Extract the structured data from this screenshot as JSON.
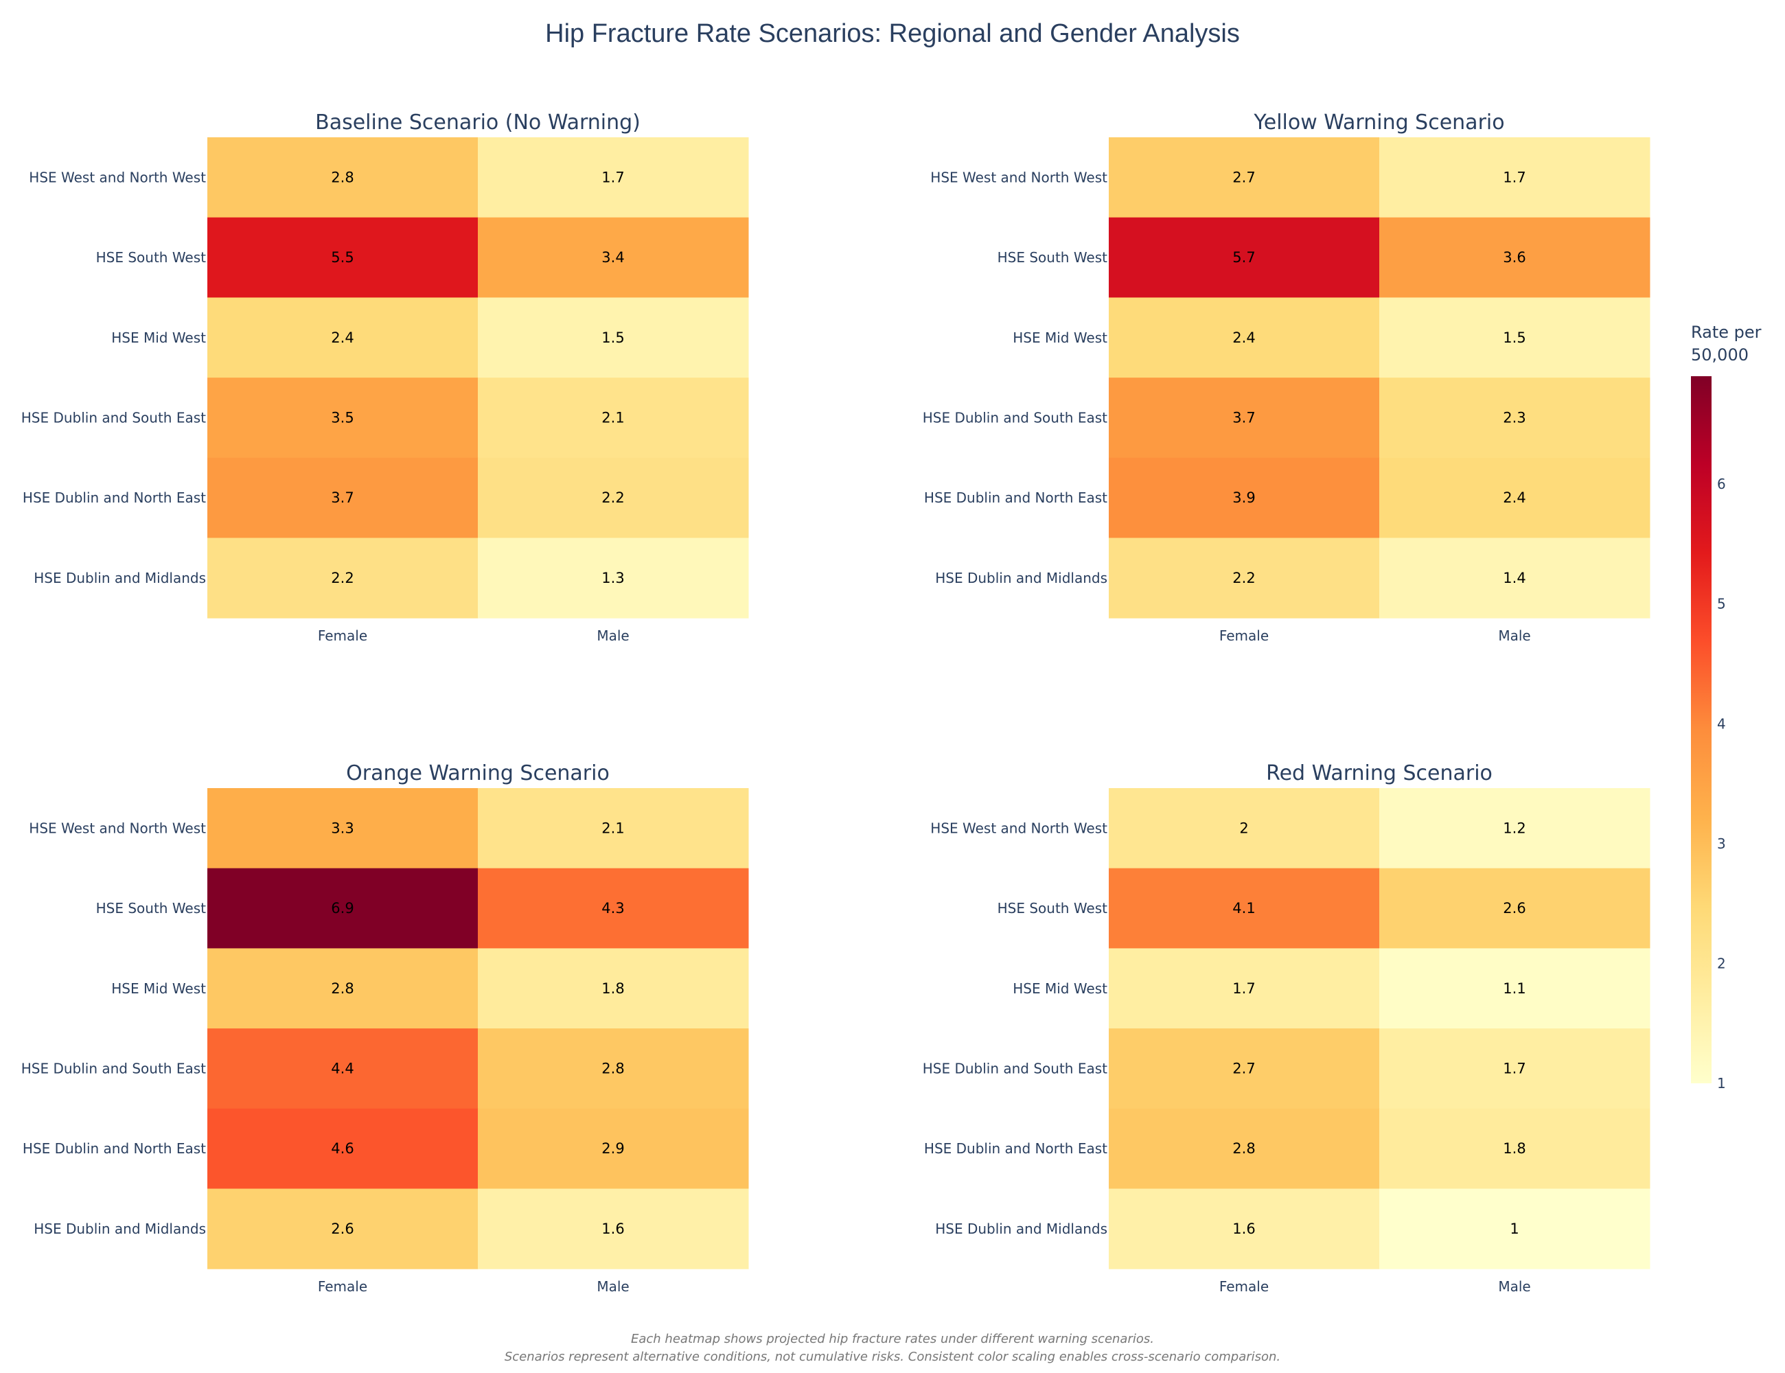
{
  "chart_data": {
    "type": "heatmap",
    "title": "Hip Fracture Rate Scenarios: Regional and Gender Analysis",
    "regions": [
      "HSE West and North West",
      "HSE South West",
      "HSE Mid West",
      "HSE Dublin and South East",
      "HSE Dublin and North East",
      "HSE Dublin and Midlands"
    ],
    "genders": [
      "Female",
      "Male"
    ],
    "panels": [
      {
        "title": "Baseline Scenario (No Warning)",
        "values": [
          [
            2.8,
            1.7
          ],
          [
            5.5,
            3.4
          ],
          [
            2.4,
            1.5
          ],
          [
            3.5,
            2.1
          ],
          [
            3.7,
            2.2
          ],
          [
            2.2,
            1.3
          ]
        ]
      },
      {
        "title": "Yellow Warning Scenario",
        "values": [
          [
            2.7,
            1.7
          ],
          [
            5.7,
            3.6
          ],
          [
            2.4,
            1.5
          ],
          [
            3.7,
            2.3
          ],
          [
            3.9,
            2.4
          ],
          [
            2.2,
            1.4
          ]
        ]
      },
      {
        "title": "Orange Warning Scenario",
        "values": [
          [
            3.3,
            2.1
          ],
          [
            6.9,
            4.3
          ],
          [
            2.8,
            1.8
          ],
          [
            4.4,
            2.8
          ],
          [
            4.6,
            2.9
          ],
          [
            2.6,
            1.6
          ]
        ]
      },
      {
        "title": "Red Warning Scenario",
        "values": [
          [
            2,
            1.2
          ],
          [
            4.1,
            2.6
          ],
          [
            1.7,
            1.1
          ],
          [
            2.7,
            1.7
          ],
          [
            2.8,
            1.8
          ],
          [
            1.6,
            1
          ]
        ]
      }
    ],
    "colorbar": {
      "title": "Rate per 50,000",
      "range": [
        1,
        6.9
      ],
      "ticks": [
        1,
        2,
        3,
        4,
        5,
        6
      ],
      "colorscale": "YlOrRd",
      "colors": [
        "#ffffcc",
        "#ffeda0",
        "#fed976",
        "#feb24c",
        "#fd8d3c",
        "#fc4e2a",
        "#e31a1c",
        "#bd0026",
        "#800026"
      ]
    },
    "footnote_lines": [
      "Each heatmap shows projected hip fracture rates under different warning scenarios.",
      "Scenarios represent alternative conditions, not cumulative risks. Consistent color scaling enables cross-scenario comparison."
    ]
  }
}
